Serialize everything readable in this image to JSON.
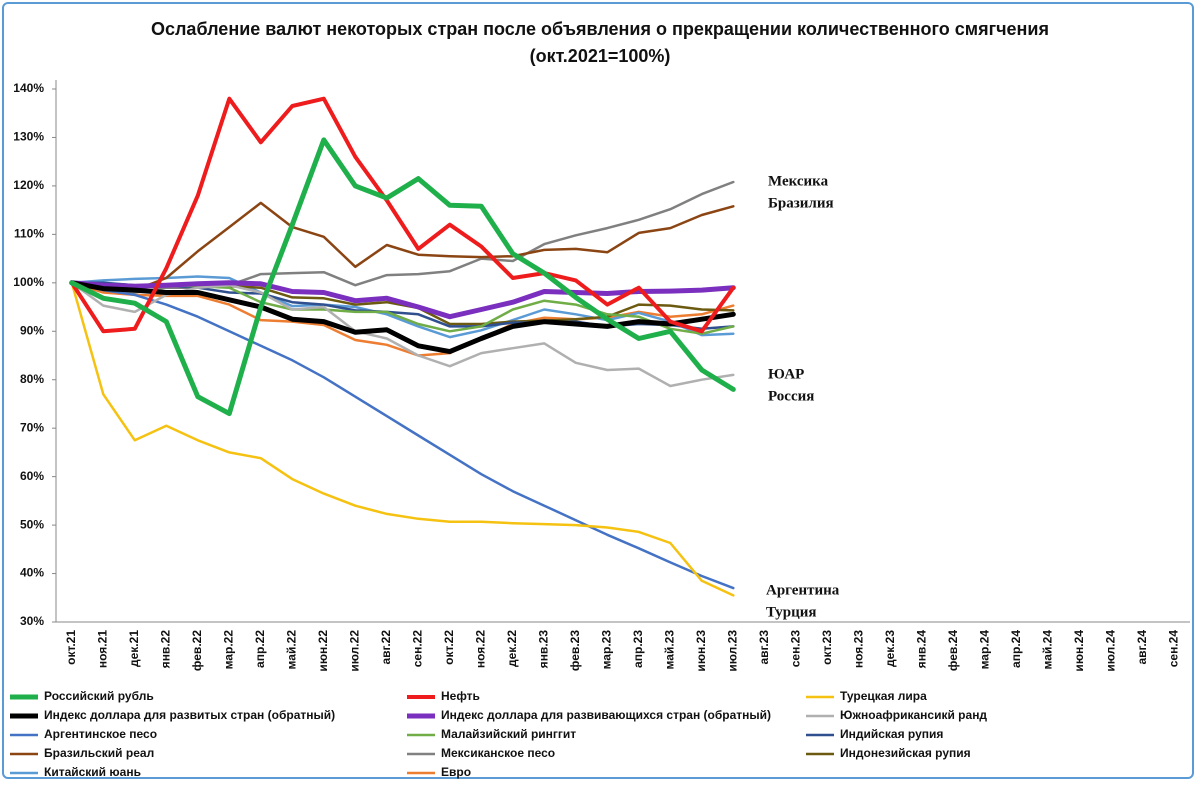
{
  "chart_data": {
    "type": "line",
    "title": "Ослабление валют некоторых стран после объявления о прекращении количественного смягчения  (окт.2021=100%)",
    "categories": [
      "окт.21",
      "ноя.21",
      "дек.21",
      "янв.22",
      "фев.22",
      "мар.22",
      "апр.22",
      "май.22",
      "июн.22",
      "июл.22",
      "авг.22",
      "сен.22",
      "окт.22",
      "ноя.22",
      "дек.22",
      "янв.23",
      "фев.23",
      "мар.23",
      "апр.23",
      "май.23",
      "июн.23",
      "июл.23",
      "авг.23",
      "сен.23",
      "окт.23",
      "ноя.23",
      "дек.23",
      "янв.24",
      "фев.24",
      "мар.24",
      "апр.24",
      "май.24",
      "июн.24",
      "июл.24",
      "авг.24",
      "сен.24"
    ],
    "ylim": [
      30,
      140
    ],
    "yticks": [
      {
        "value": 30,
        "label": "30%"
      },
      {
        "value": 40,
        "label": "40%"
      },
      {
        "value": 50,
        "label": "50%"
      },
      {
        "value": 60,
        "label": "60%"
      },
      {
        "value": 70,
        "label": "70%"
      },
      {
        "value": 80,
        "label": "80%"
      },
      {
        "value": 90,
        "label": "90%"
      },
      {
        "value": 100,
        "label": "100%"
      },
      {
        "value": 110,
        "label": "110%"
      },
      {
        "value": 120,
        "label": "120%"
      },
      {
        "value": 130,
        "label": "130%"
      },
      {
        "value": 140,
        "label": "140%"
      }
    ],
    "grid": false,
    "legend": "bottom",
    "annotations": [
      "Мексика",
      "Бразилия",
      "ЮАР",
      "Россия",
      "Аргентина",
      "Турция"
    ],
    "series": [
      {
        "name": "Российский рубль",
        "color": "#1fb04c",
        "line_width": 5,
        "values": [
          100,
          96.8,
          95.8,
          92,
          76.5,
          73,
          95,
          112,
          129.5,
          120,
          117.5,
          121.5,
          116,
          115.8,
          106,
          102,
          97,
          92.5,
          88.5,
          90,
          82,
          78,
          null,
          null,
          null,
          null,
          null,
          null,
          null,
          null,
          null,
          null,
          null,
          null,
          null,
          null
        ]
      },
      {
        "name": "Нефть",
        "color": "#ee1c1c",
        "line_width": 4,
        "values": [
          100,
          90,
          90.5,
          103,
          118,
          138,
          129,
          136.5,
          138,
          126,
          117,
          107,
          112,
          107.5,
          101,
          102,
          100.5,
          95.5,
          99,
          92,
          90,
          99,
          null,
          null,
          null,
          null,
          null,
          null,
          null,
          null,
          null,
          null,
          null,
          null,
          null,
          null
        ]
      },
      {
        "name": "Турецкая лира",
        "color": "#f5c211",
        "line_width": 2.5,
        "values": [
          100,
          77,
          67.5,
          70.5,
          67.5,
          65,
          63.8,
          59.5,
          56.5,
          54,
          52.3,
          51.3,
          50.7,
          50.7,
          50.4,
          50.2,
          50,
          49.5,
          48.6,
          46.3,
          38.5,
          35.5,
          null,
          null,
          null,
          null,
          null,
          null,
          null,
          null,
          null,
          null,
          null,
          null,
          null,
          null
        ]
      },
      {
        "name": "Индекс доллара для развитых стран (обратный)",
        "color": "#000000",
        "line_width": 5,
        "values": [
          100,
          98.8,
          98.5,
          98,
          98,
          96.5,
          95,
          92.5,
          92,
          89.8,
          90.3,
          87,
          85.8,
          88.5,
          91,
          92,
          91.5,
          91,
          92,
          91.5,
          92.5,
          93.5,
          null,
          null,
          null,
          null,
          null,
          null,
          null,
          null,
          null,
          null,
          null,
          null,
          null,
          null
        ]
      },
      {
        "name": "Индекс доллара для развивающихся стран (обратный)",
        "color": "#7b2fbe",
        "line_width": 5,
        "values": [
          100,
          99.5,
          99.3,
          99.5,
          99.8,
          100,
          99.8,
          98.2,
          98,
          96.3,
          96.8,
          95,
          93,
          94.5,
          96,
          98.2,
          98,
          97.8,
          98.2,
          98.3,
          98.5,
          99,
          null,
          null,
          null,
          null,
          null,
          null,
          null,
          null,
          null,
          null,
          null,
          null,
          null,
          null
        ]
      },
      {
        "name": "Южноафрикансикй ранд",
        "color": "#b0b0b0",
        "line_width": 2.5,
        "values": [
          100,
          95.3,
          94,
          97.5,
          99,
          99.5,
          98,
          94.5,
          95,
          90,
          88.5,
          85,
          82.8,
          85.5,
          86.5,
          87.5,
          83.5,
          82,
          82.3,
          78.7,
          80,
          81,
          null,
          null,
          null,
          null,
          null,
          null,
          null,
          null,
          null,
          null,
          null,
          null,
          null,
          null
        ]
      },
      {
        "name": "Аргентинское песо",
        "color": "#4472c4",
        "line_width": 2.5,
        "values": [
          100,
          98.5,
          97.5,
          95.5,
          93,
          90,
          87,
          84,
          80.5,
          76.5,
          72.5,
          68.5,
          64.5,
          60.5,
          57,
          54,
          51,
          48,
          45.2,
          42.3,
          39.5,
          37,
          null,
          null,
          null,
          null,
          null,
          null,
          null,
          null,
          null,
          null,
          null,
          null,
          null,
          null
        ]
      },
      {
        "name": "Малайзийский ринггит",
        "color": "#70ad47",
        "line_width": 2.5,
        "values": [
          100,
          99.5,
          99,
          99.5,
          99.3,
          99,
          96,
          94.5,
          94.5,
          94,
          94,
          91.5,
          90,
          91,
          94.5,
          96.3,
          95.5,
          93.5,
          93,
          90.5,
          89.5,
          91,
          null,
          null,
          null,
          null,
          null,
          null,
          null,
          null,
          null,
          null,
          null,
          null,
          null,
          null
        ]
      },
      {
        "name": "Индийская рупия",
        "color": "#2f4f8f",
        "line_width": 2.5,
        "values": [
          100,
          100,
          99.5,
          99.5,
          99,
          98,
          97.8,
          96,
          95.5,
          94.3,
          94,
          93.5,
          91,
          91,
          91.8,
          91.8,
          92,
          91,
          91.5,
          91.3,
          90.5,
          91,
          null,
          null,
          null,
          null,
          null,
          null,
          null,
          null,
          null,
          null,
          null,
          null,
          null,
          null
        ]
      },
      {
        "name": "Бразильский реал",
        "color": "#8b4513",
        "line_width": 2.5,
        "values": [
          100,
          99.5,
          98.5,
          101,
          106.5,
          111.5,
          116.5,
          111.5,
          109.5,
          103.3,
          107.8,
          105.8,
          105.5,
          105.3,
          105.5,
          106.8,
          107,
          106.3,
          110.3,
          111.3,
          114,
          115.8,
          null,
          null,
          null,
          null,
          null,
          null,
          null,
          null,
          null,
          null,
          null,
          null,
          null,
          null
        ]
      },
      {
        "name": "Мексиканское песо",
        "color": "#808080",
        "line_width": 2.5,
        "values": [
          100,
          99,
          98,
          99,
          99,
          99.5,
          101.8,
          102,
          102.2,
          99.5,
          101.6,
          101.8,
          102.4,
          105,
          104.5,
          108,
          109.8,
          111.3,
          113,
          115.2,
          118.3,
          120.8,
          null,
          null,
          null,
          null,
          null,
          null,
          null,
          null,
          null,
          null,
          null,
          null,
          null,
          null
        ]
      },
      {
        "name": "Индонезийская рупия",
        "color": "#6b5a10",
        "line_width": 2.5,
        "values": [
          100,
          99.8,
          99.5,
          99.5,
          99.5,
          99.3,
          99,
          97,
          96.8,
          95.5,
          96,
          94.8,
          91.5,
          91.5,
          92,
          92.2,
          92.5,
          93,
          95.5,
          95.3,
          94.5,
          94.3,
          null,
          null,
          null,
          null,
          null,
          null,
          null,
          null,
          null,
          null,
          null,
          null,
          null,
          null
        ]
      },
      {
        "name": "Китайский юань",
        "color": "#5b9bd5",
        "line_width": 2.5,
        "values": [
          100,
          100.5,
          100.8,
          101,
          101.3,
          101,
          98,
          95.2,
          95.5,
          95,
          93.5,
          91,
          88.8,
          90.2,
          92.3,
          94.5,
          93.5,
          92.3,
          93.8,
          92,
          89.2,
          89.5,
          null,
          null,
          null,
          null,
          null,
          null,
          null,
          null,
          null,
          null,
          null,
          null,
          null,
          null
        ]
      },
      {
        "name": "Евро",
        "color": "#ed7d31",
        "line_width": 2.5,
        "values": [
          100,
          98,
          97.5,
          97.3,
          97.3,
          95.5,
          92.3,
          92,
          91.3,
          88.2,
          87.2,
          85,
          85.5,
          88.5,
          91.5,
          92.8,
          92.5,
          92.8,
          94,
          93,
          93.5,
          95.3,
          null,
          null,
          null,
          null,
          null,
          null,
          null,
          null,
          null,
          null,
          null,
          null,
          null,
          null
        ]
      }
    ]
  }
}
